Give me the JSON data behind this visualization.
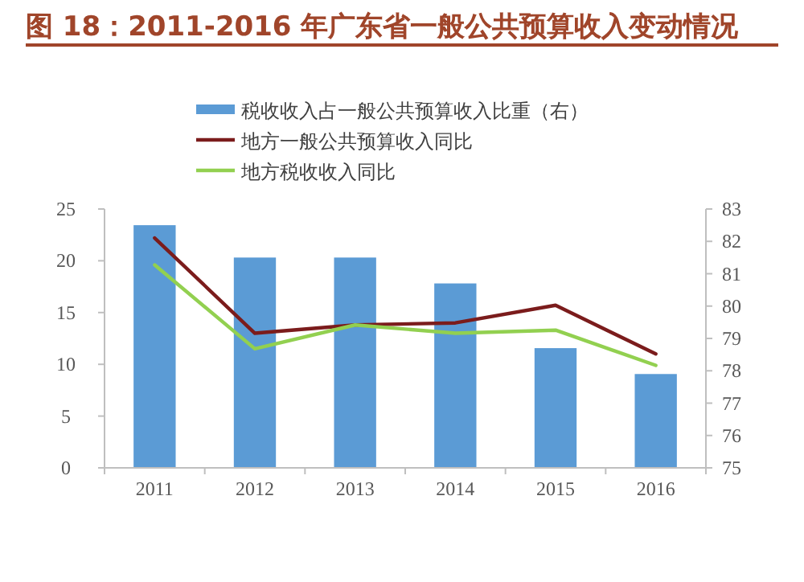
{
  "chart_data": {
    "type": "bar",
    "title": "图 18：2011-2016 年广东省一般公共预算收入变动情况",
    "categories": [
      "2011",
      "2012",
      "2013",
      "2014",
      "2015",
      "2016"
    ],
    "series": [
      {
        "name": "税收收入占一般公共预算收入比重（右）",
        "axis": "y2",
        "color": "#5b9bd5",
        "values": [
          82.5,
          81.5,
          81.5,
          80.7,
          78.7,
          77.9
        ]
      },
      {
        "name": "地方一般公共预算收入同比",
        "type": "line",
        "color": "#7b1c1c",
        "values": [
          22.2,
          13.0,
          13.8,
          14.0,
          15.7,
          11.0
        ]
      },
      {
        "name": "地方税收收入同比",
        "type": "line",
        "color": "#92d050",
        "values": [
          19.6,
          11.5,
          13.8,
          13.0,
          13.3,
          9.9
        ]
      }
    ],
    "ylim": [
      0,
      25
    ],
    "yticks": [
      0,
      5,
      10,
      15,
      20,
      25
    ],
    "y2lim": [
      75,
      83
    ],
    "y2ticks": [
      75,
      76,
      77,
      78,
      79,
      80,
      81,
      82,
      83
    ],
    "legend": "top",
    "grid": false
  }
}
